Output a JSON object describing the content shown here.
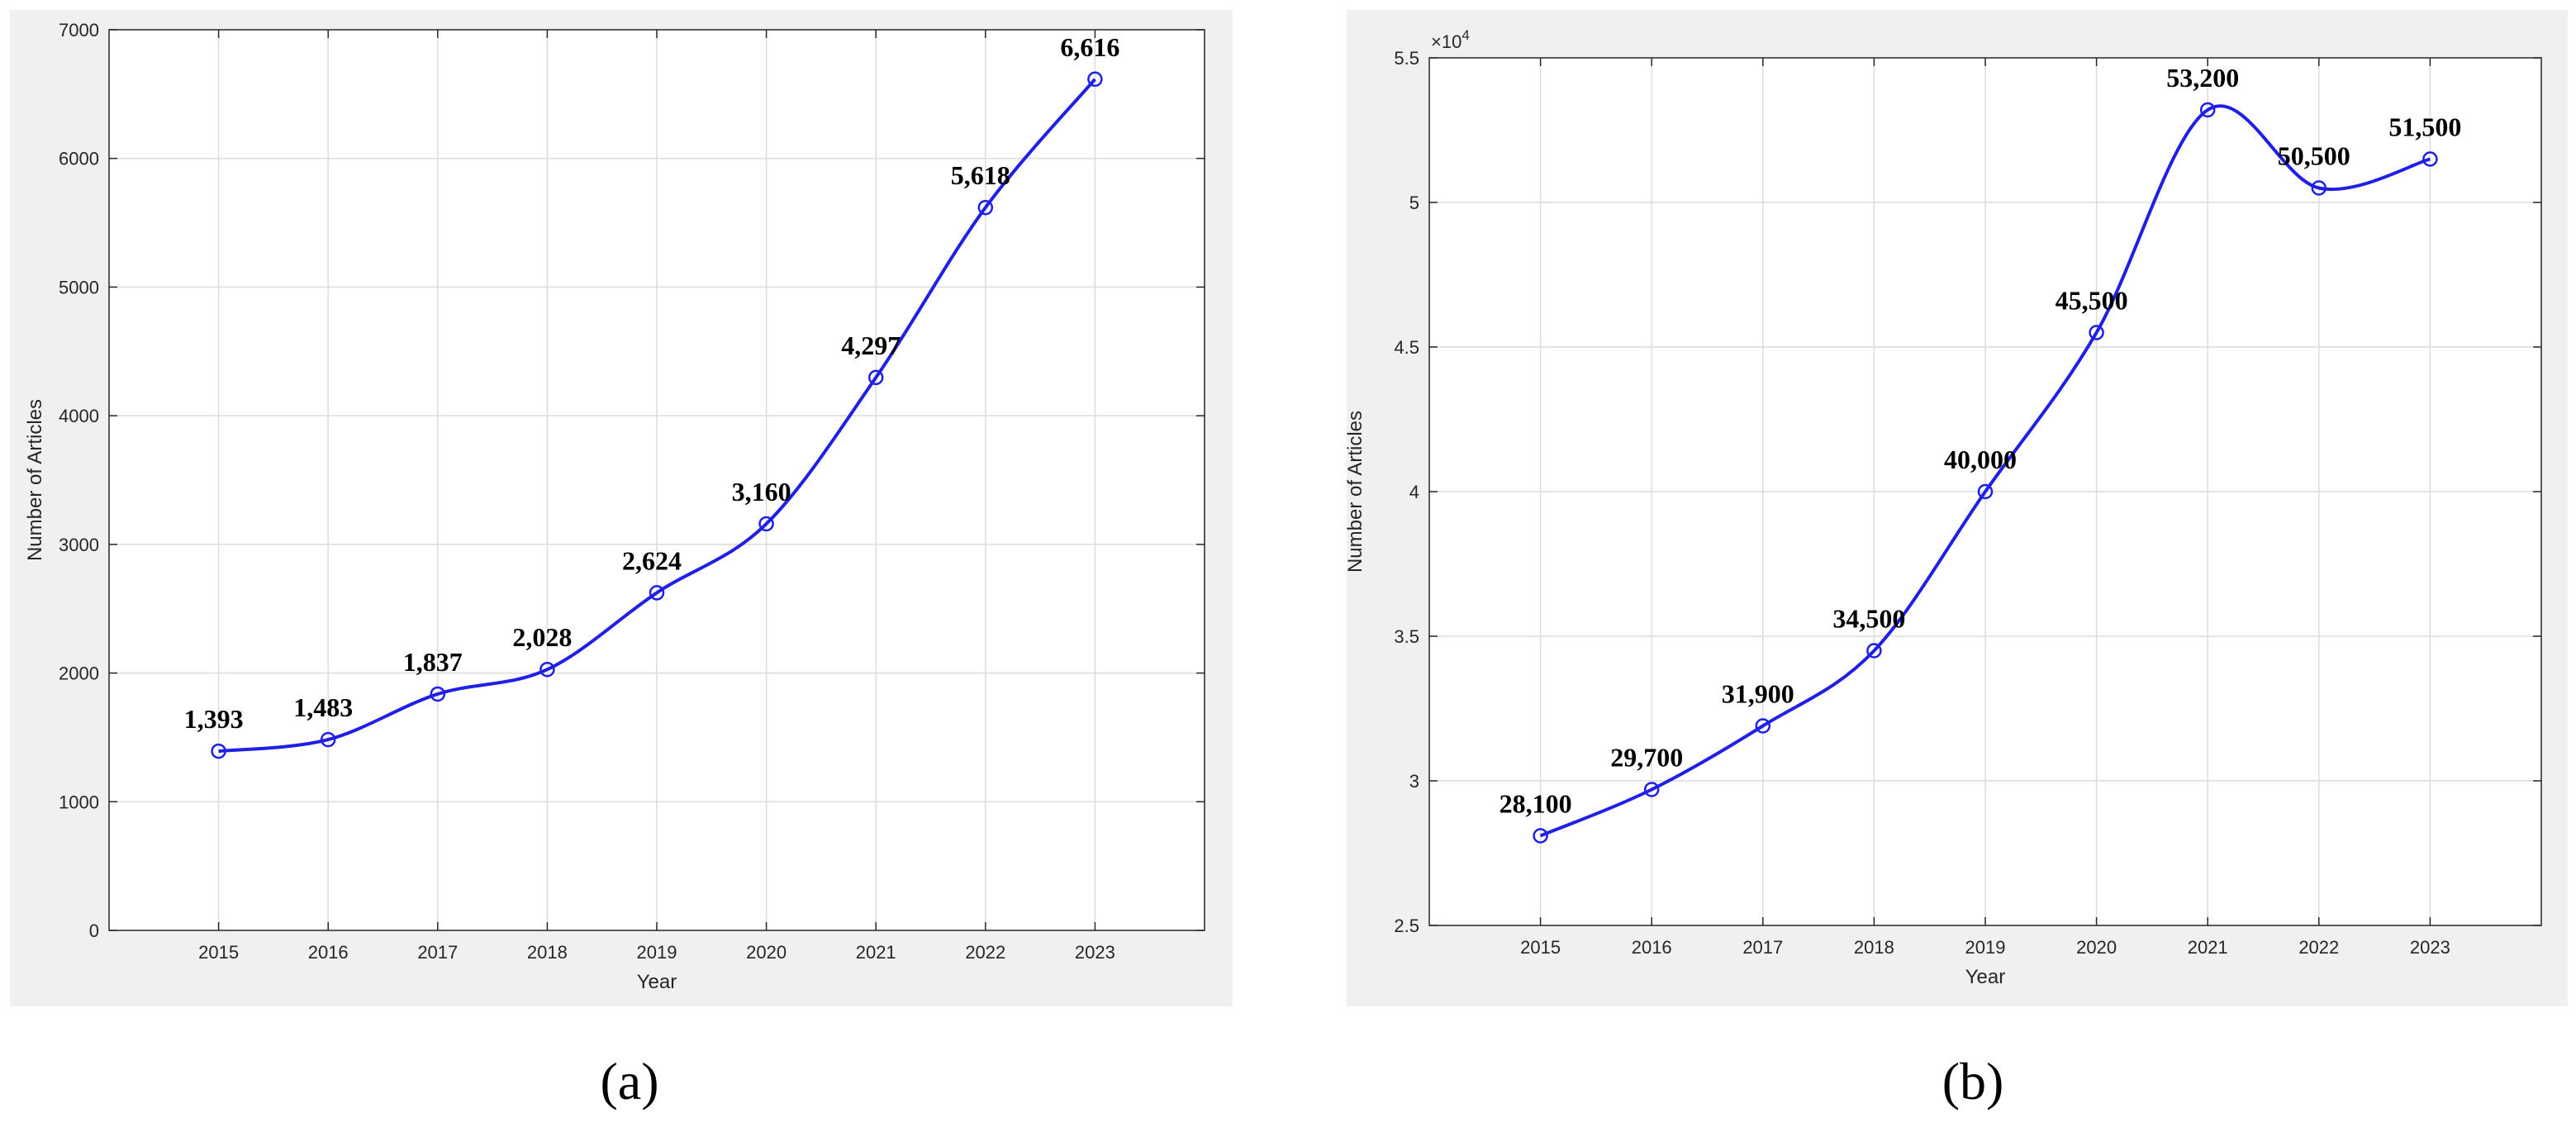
{
  "chart_data": [
    {
      "type": "line",
      "title": "",
      "xlabel": "Year",
      "ylabel": "Number of Articles",
      "x": [
        "2015",
        "2016",
        "2017",
        "2018",
        "2019",
        "2020",
        "2021",
        "2022",
        "2023"
      ],
      "values": [
        1393,
        1483,
        1837,
        2028,
        2624,
        3160,
        4297,
        5618,
        6616
      ],
      "data_labels": [
        "1,393",
        "1,483",
        "1,837",
        "2,028",
        "2,624",
        "3,160",
        "4,297",
        "5,618",
        "6,616"
      ],
      "ylim": [
        0,
        7000
      ],
      "yticks": [
        "0",
        "1000",
        "2000",
        "3000",
        "4000",
        "5000",
        "6000",
        "7000"
      ],
      "xlim": [
        2014,
        2024
      ],
      "multiplier": "",
      "grid": true,
      "line_color": "#1f1fe6",
      "marker": "circle"
    },
    {
      "type": "line",
      "title": "",
      "xlabel": "Year",
      "ylabel": "Number of Articles",
      "x": [
        "2015",
        "2016",
        "2017",
        "2018",
        "2019",
        "2020",
        "2021",
        "2022",
        "2023"
      ],
      "values": [
        28100,
        29700,
        31900,
        34500,
        40000,
        45500,
        53200,
        50500,
        51500
      ],
      "data_labels": [
        "28,100",
        "29,700",
        "31,900",
        "34,500",
        "40,000",
        "45,500",
        "53,200",
        "50,500",
        "51,500"
      ],
      "ylim": [
        25000,
        55000
      ],
      "yticks": [
        "2.5",
        "3",
        "3.5",
        "4",
        "4.5",
        "5",
        "5.5"
      ],
      "xlim": [
        2014,
        2024
      ],
      "multiplier": "×10",
      "multiplier_exp": "4",
      "grid": true,
      "line_color": "#1f1fe6",
      "marker": "circle"
    }
  ],
  "captions": {
    "a": "(a)",
    "b": "(b)"
  },
  "colors": {
    "panel_bg": "#f0f0f0",
    "plot_bg": "#ffffff",
    "grid": "#dcdcdc",
    "axis": "#262626"
  }
}
